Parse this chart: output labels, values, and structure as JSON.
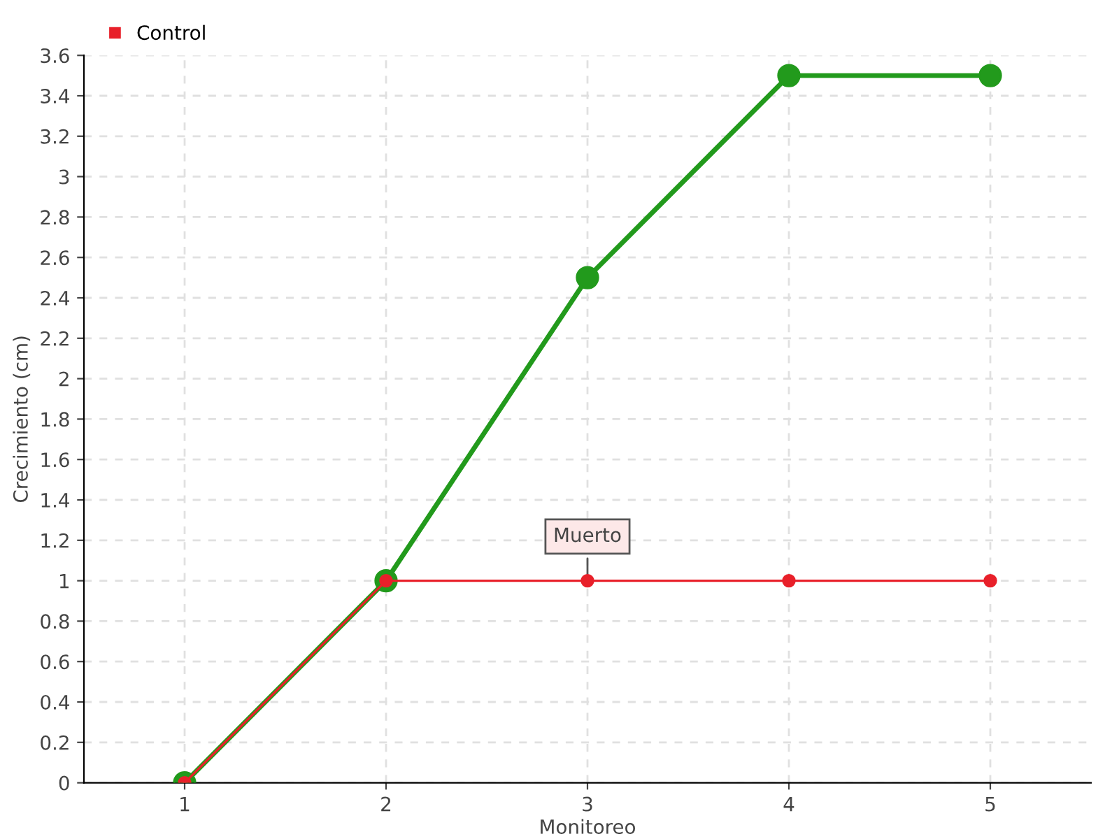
{
  "chart_data": {
    "type": "line",
    "xlabel": "Monitoreo",
    "ylabel": "Crecimiento (cm)",
    "x": [
      1,
      2,
      3,
      4,
      5
    ],
    "series": [
      {
        "color": "#229a1c",
        "values": [
          0,
          1,
          2.5,
          3.5,
          3.5
        ]
      },
      {
        "name": "Control",
        "color": "#e8202a",
        "values": [
          0,
          1,
          1,
          1,
          1
        ]
      }
    ],
    "xlim": [
      0.5,
      5.5
    ],
    "xticks": [
      1,
      2,
      3,
      4,
      5
    ],
    "ylim": [
      0,
      3.6
    ],
    "yticks": [
      0,
      0.2,
      0.4,
      0.6,
      0.8,
      1,
      1.2,
      1.4,
      1.6,
      1.8,
      2,
      2.2,
      2.4,
      2.6,
      2.8,
      3,
      3.2,
      3.4,
      3.6
    ],
    "annotations": [
      {
        "text": "Muerto",
        "x": 3,
        "y": 1
      }
    ],
    "grid": true,
    "legend": "top left",
    "marker": "circle",
    "line_style": "solid"
  }
}
